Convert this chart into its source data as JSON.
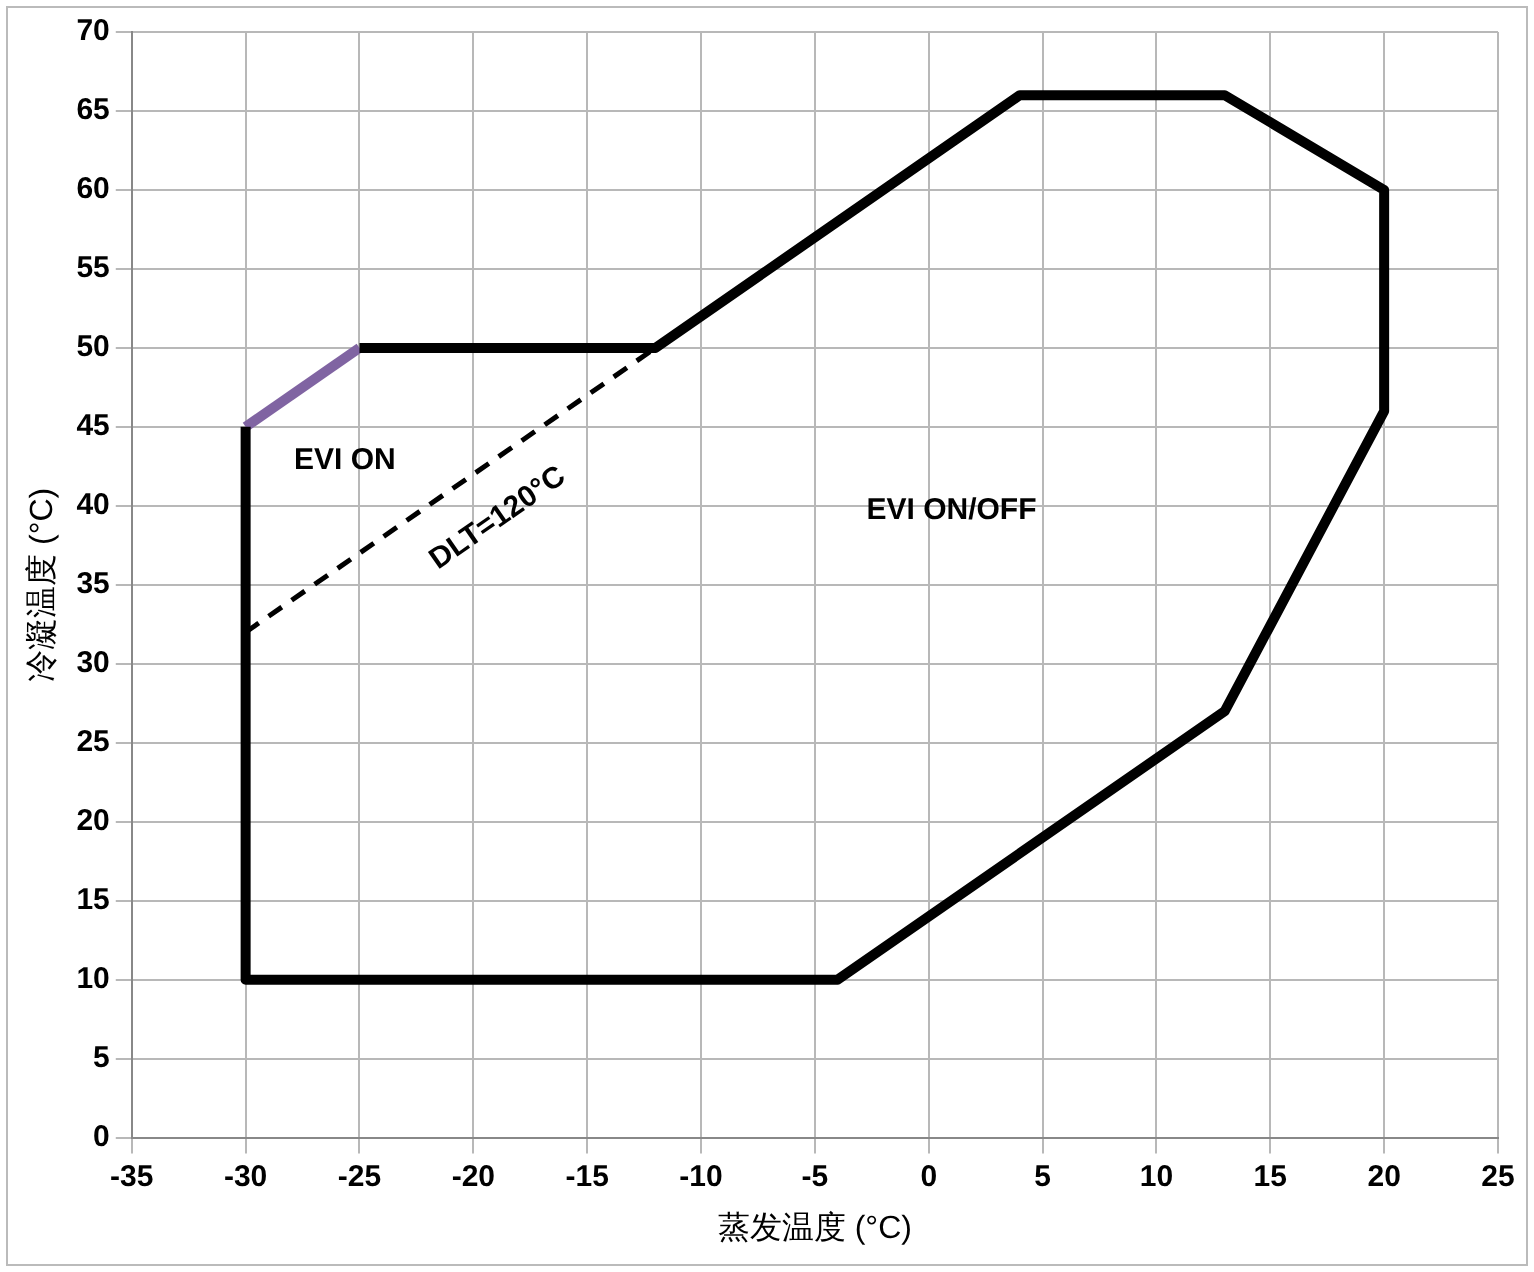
{
  "chart_data": {
    "type": "line",
    "xlabel": "蒸发温度 (°C)",
    "ylabel": "冷凝温度 (°C)",
    "xlim": [
      -35,
      25
    ],
    "xticks": [
      -35,
      -30,
      -25,
      -20,
      -15,
      -10,
      -5,
      0,
      5,
      10,
      15,
      20,
      25
    ],
    "ylim": [
      0,
      70
    ],
    "yticks": [
      0,
      5,
      10,
      15,
      20,
      25,
      30,
      35,
      40,
      45,
      50,
      55,
      60,
      65,
      70
    ],
    "grid": true,
    "legend": false,
    "marker": "none",
    "series": [
      {
        "color": "#000000",
        "line_style": "solid",
        "x": [
          -25,
          -12,
          4,
          13,
          20,
          20,
          13,
          -4,
          -30,
          -30
        ],
        "values": [
          50,
          50,
          66,
          66,
          60,
          46,
          27,
          10,
          10,
          45
        ]
      },
      {
        "color": "#8064a2",
        "line_style": "solid",
        "x": [
          -30,
          -25
        ],
        "values": [
          45,
          50
        ]
      },
      {
        "color": "#000000",
        "line_style": "dashed",
        "x": [
          -30,
          -12
        ],
        "values": [
          32,
          50
        ]
      }
    ],
    "annotations": [
      "EVI ON",
      "DLT=120°C",
      "EVI ON/OFF"
    ]
  }
}
